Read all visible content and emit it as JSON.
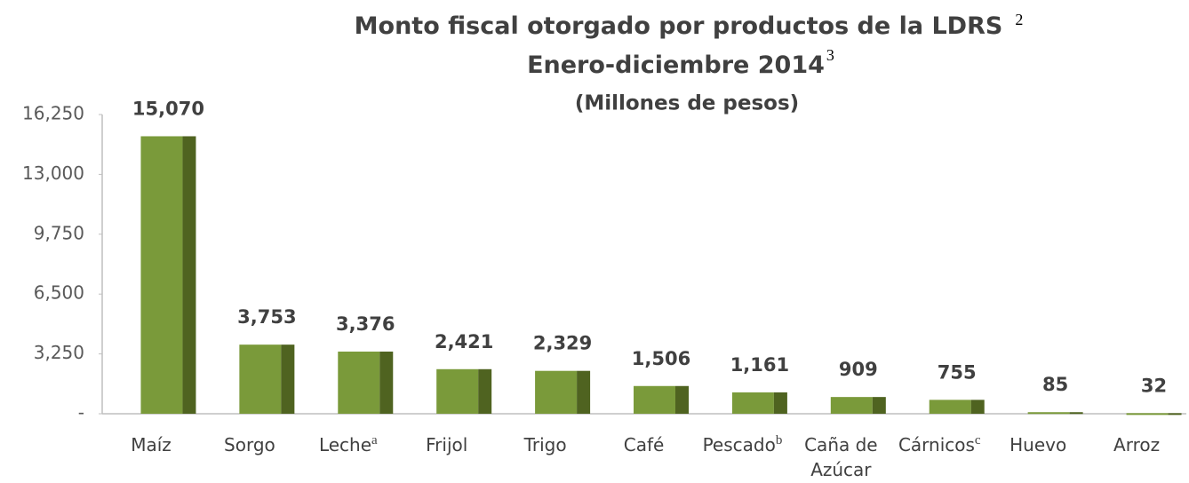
{
  "chart_data": {
    "type": "bar",
    "title": "Monto fiscal otorgado por productos de la LDRS",
    "title_note": "2",
    "subtitle": "Enero-diciembre 2014",
    "subtitle_note": "3",
    "unit_label": "(Millones de pesos)",
    "categories": [
      "Maíz",
      "Sorgo",
      "Leche",
      "Frijol",
      "Trigo",
      "Café",
      "Pescado",
      "Caña de Azúcar",
      "Cárnicos",
      "Huevo",
      "Arroz"
    ],
    "category_notes": [
      null,
      null,
      "a",
      null,
      null,
      null,
      "b",
      null,
      "c",
      null,
      null
    ],
    "values": [
      15070,
      3753,
      3376,
      2421,
      2329,
      1506,
      1161,
      909,
      755,
      85,
      32
    ],
    "value_labels": [
      "15,070",
      "3,753",
      "3,376",
      "2,421",
      "2,329",
      "1,506",
      "1,161",
      "909",
      "755",
      "85",
      "32"
    ],
    "color": "#7a9a3a",
    "side_color": "#4f6320",
    "ylim": [
      0,
      16250
    ],
    "yticks": [
      {
        "value": 0,
        "label": "-"
      },
      {
        "value": 3250,
        "label": "3,250"
      },
      {
        "value": 6500,
        "label": "6,500"
      },
      {
        "value": 9750,
        "label": "9,750"
      },
      {
        "value": 13000,
        "label": "13,000"
      },
      {
        "value": 16250,
        "label": "16,250"
      }
    ],
    "grid": false
  }
}
